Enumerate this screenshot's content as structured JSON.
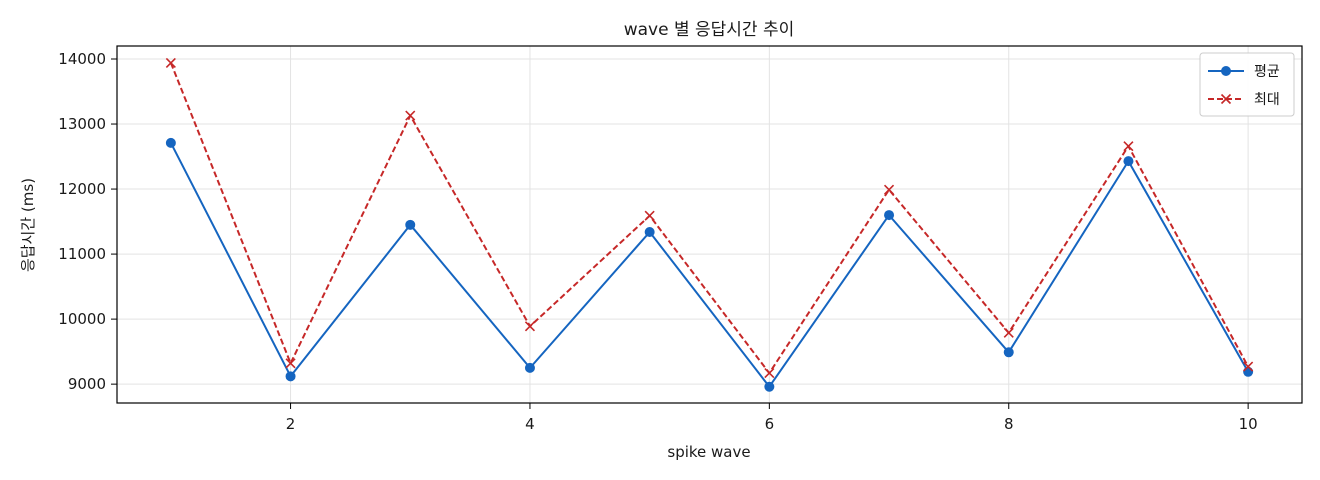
{
  "chart_data": {
    "type": "line",
    "title": "wave 별 응답시간 추이",
    "xlabel": "spike wave",
    "ylabel": "응답시간 (ms)",
    "x": [
      1,
      2,
      3,
      4,
      5,
      6,
      7,
      8,
      9,
      10
    ],
    "xlim": [
      0.55,
      10.45
    ],
    "ylim": [
      8710,
      14200
    ],
    "xticks": [
      2,
      4,
      6,
      8,
      10
    ],
    "yticks": [
      9000,
      10000,
      11000,
      12000,
      13000,
      14000
    ],
    "grid": true,
    "legend_position": "top-right",
    "series": [
      {
        "name": "평균",
        "values": [
          12710,
          9120,
          11450,
          9250,
          11340,
          8960,
          11600,
          9490,
          12430,
          9190
        ],
        "color": "#1565c0",
        "line_style": "solid",
        "marker": "circle"
      },
      {
        "name": "최대",
        "values": [
          13940,
          9320,
          13130,
          9890,
          11590,
          9170,
          11990,
          9790,
          12660,
          9270
        ],
        "color": "#c62828",
        "line_style": "dashed",
        "marker": "x"
      }
    ]
  }
}
